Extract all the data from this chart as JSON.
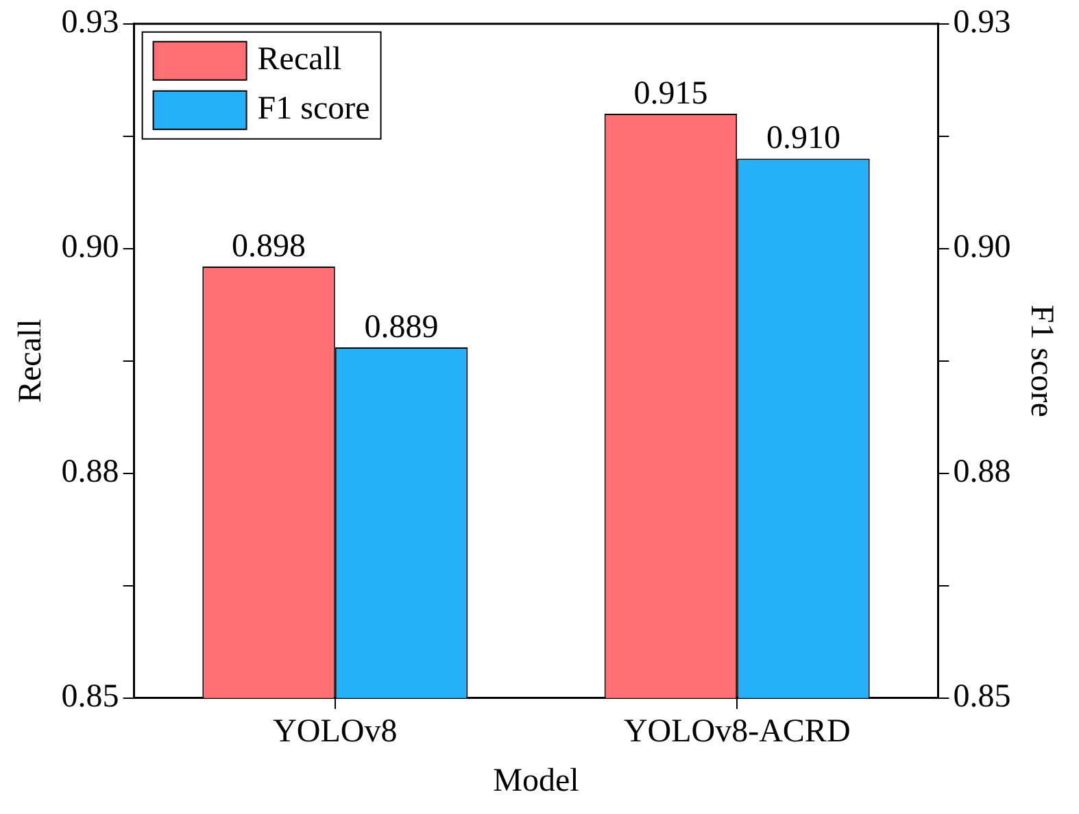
{
  "chart_data": {
    "type": "bar",
    "categories": [
      "YOLOv8",
      "YOLOv8-ACRD"
    ],
    "series": [
      {
        "name": "Recall",
        "color": "#ff6f73",
        "values": [
          0.898,
          0.915
        ],
        "value_labels": [
          "0.898",
          "0.915"
        ]
      },
      {
        "name": "F1 score",
        "color": "#25b0f8",
        "values": [
          0.889,
          0.91
        ],
        "value_labels": [
          "0.889",
          "0.910"
        ]
      }
    ],
    "xlabel": "Model",
    "ylabel": "Recall",
    "y2label": "F1 score",
    "ylim": [
      0.85,
      0.925
    ],
    "yticks": [
      {
        "value": 0.85,
        "label": "0.85"
      },
      {
        "value": 0.8625,
        "label": null
      },
      {
        "value": 0.875,
        "label": "0.88"
      },
      {
        "value": 0.8875,
        "label": null
      },
      {
        "value": 0.9,
        "label": "0.90"
      },
      {
        "value": 0.9125,
        "label": null
      },
      {
        "value": 0.925,
        "label": "0.93"
      }
    ],
    "y2lim": [
      0.85,
      0.925
    ],
    "y2ticks": [
      {
        "value": 0.85,
        "label": "0.85"
      },
      {
        "value": 0.8625,
        "label": null
      },
      {
        "value": 0.875,
        "label": "0.88"
      },
      {
        "value": 0.8875,
        "label": null
      },
      {
        "value": 0.9,
        "label": "0.90"
      },
      {
        "value": 0.9125,
        "label": null
      },
      {
        "value": 0.925,
        "label": "0.93"
      }
    ],
    "legend": "top left",
    "grid": false
  }
}
